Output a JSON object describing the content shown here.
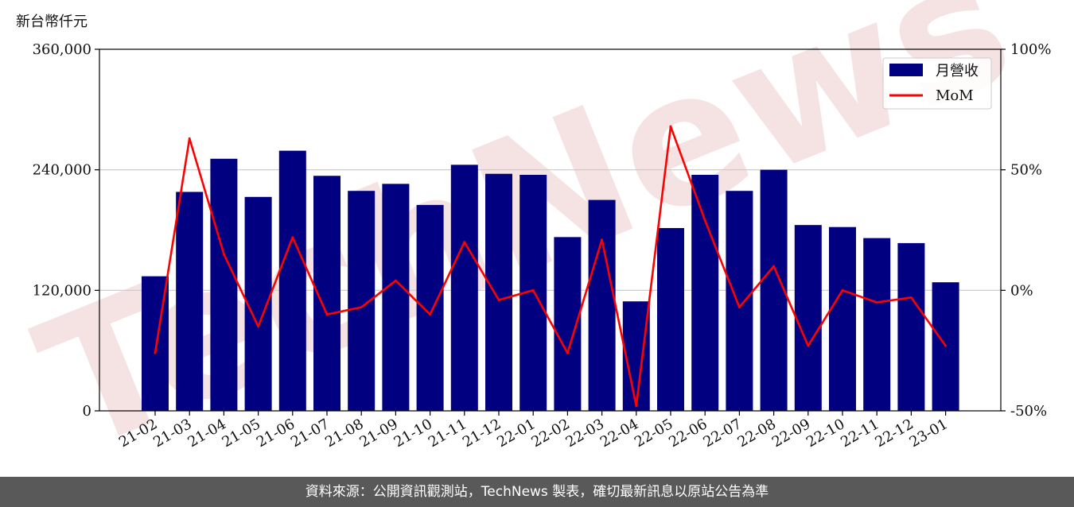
{
  "chart_data": {
    "type": "bar",
    "unit_label": "新台幣仟元",
    "categories": [
      "21-02",
      "21-03",
      "21-04",
      "21-05",
      "21-06",
      "21-07",
      "21-08",
      "21-09",
      "21-10",
      "21-11",
      "21-12",
      "22-01",
      "22-02",
      "22-03",
      "22-04",
      "22-05",
      "22-06",
      "22-07",
      "22-08",
      "22-09",
      "22-10",
      "22-11",
      "22-12",
      "23-01"
    ],
    "series": [
      {
        "name": "月營收",
        "type": "bar",
        "axis": "left",
        "color": "#000080",
        "values": [
          134000,
          218000,
          251000,
          213000,
          259000,
          234000,
          219000,
          226000,
          205000,
          245000,
          236000,
          235000,
          173000,
          210000,
          109000,
          182000,
          235000,
          219000,
          240000,
          185000,
          183000,
          172000,
          167000,
          128000
        ]
      },
      {
        "name": "MoM",
        "type": "line",
        "axis": "right",
        "color": "#ff0000",
        "values": [
          -26,
          63,
          15,
          -15,
          22,
          -10,
          -7,
          4,
          -10,
          20,
          -4,
          0,
          -26,
          21,
          -48,
          68,
          29,
          -7,
          10,
          -23,
          0,
          -5,
          -3,
          -23
        ]
      }
    ],
    "y_left": {
      "min": 0,
      "max": 360000,
      "ticks": [
        0,
        120000,
        240000,
        360000
      ],
      "tick_labels": [
        "0",
        "120,000",
        "240,000",
        "360,000"
      ]
    },
    "y_right": {
      "min": -50,
      "max": 100,
      "ticks": [
        -50,
        0,
        50,
        100
      ],
      "tick_labels": [
        "-50%",
        "0%",
        "50%",
        "100%"
      ]
    },
    "grid": "horizontal",
    "legend_position": "top-right"
  },
  "footer": {
    "text": "資料來源：公開資訊觀測站，TechNews 製表，確切最新訊息以原站公告為準"
  },
  "watermark": {
    "text": "TechNews",
    "color": "#f2d9d9"
  }
}
